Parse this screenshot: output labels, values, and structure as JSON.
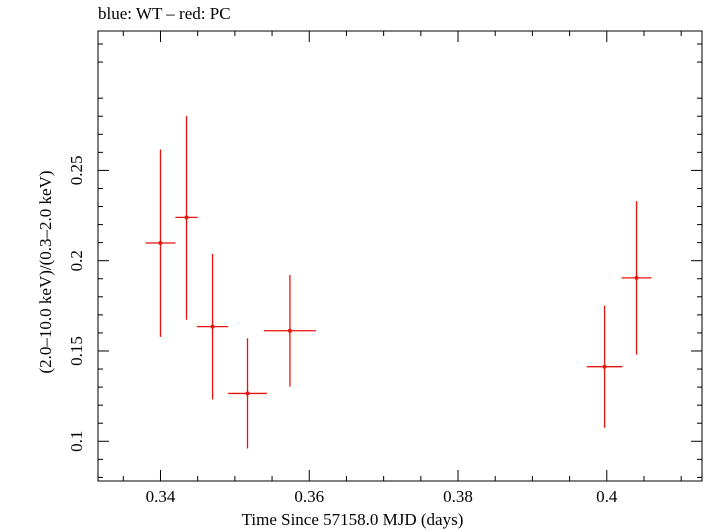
{
  "chart_data": {
    "type": "scatter",
    "title": "blue: WT – red: PC",
    "xlabel": "Time Since 57158.0 MJD (days)",
    "ylabel": "(2.0–10.0 keV)/(0.3–2.0 keV)",
    "xlim": [
      0.3316,
      0.4128
    ],
    "ylim": [
      0.078,
      0.3272
    ],
    "xticks": [
      0.34,
      0.36,
      0.38,
      0.4
    ],
    "xtick_labels": [
      "0.34",
      "0.36",
      "0.38",
      "0.4"
    ],
    "yticks": [
      0.1,
      0.15,
      0.2,
      0.25
    ],
    "ytick_labels": [
      "0.1",
      "0.15",
      "0.2",
      "0.25"
    ],
    "grid": false,
    "series": [
      {
        "color": "#e8120f",
        "points": [
          {
            "x": 0.34,
            "xerr": 0.002,
            "y": 0.2098,
            "yerr_low": 0.052,
            "yerr_high": 0.0518
          },
          {
            "x": 0.3435,
            "xerr": 0.0015,
            "y": 0.224,
            "yerr_low": 0.0567,
            "yerr_high": 0.0562
          },
          {
            "x": 0.347,
            "xerr": 0.0021,
            "y": 0.1635,
            "yerr_low": 0.0403,
            "yerr_high": 0.0403
          },
          {
            "x": 0.3517,
            "xerr": 0.0026,
            "y": 0.1265,
            "yerr_low": 0.0305,
            "yerr_high": 0.0305
          },
          {
            "x": 0.3574,
            "xerr": 0.0035,
            "y": 0.1612,
            "yerr_low": 0.0309,
            "yerr_high": 0.0309
          },
          {
            "x": 0.3997,
            "xerr": 0.0024,
            "y": 0.1413,
            "yerr_low": 0.0338,
            "yerr_high": 0.0338
          },
          {
            "x": 0.404,
            "xerr": 0.002,
            "y": 0.1905,
            "yerr_low": 0.0425,
            "yerr_high": 0.0425
          }
        ]
      }
    ]
  }
}
